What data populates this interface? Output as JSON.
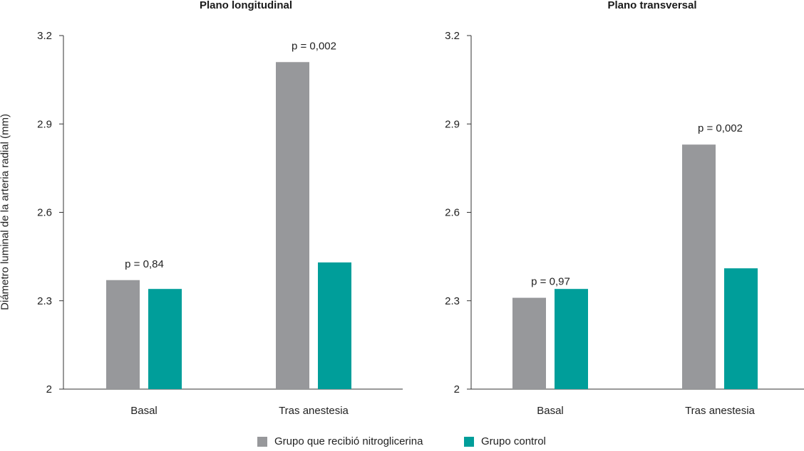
{
  "ytitle": "Diámetro luminal de la arteria radial (mm)",
  "legend": [
    {
      "label": "Grupo que recibió nitroglicerina",
      "color": "#97989b"
    },
    {
      "label": "Grupo control",
      "color": "#009e9a"
    }
  ],
  "chart_data": [
    {
      "type": "bar",
      "title": "Plano longitudinal",
      "ylabel": "Diámetro luminal de la arteria radial (mm)",
      "ylim": [
        2,
        3.2
      ],
      "yticks": [
        "2",
        "2.3",
        "2.6",
        "2.9",
        "3.2"
      ],
      "categories": [
        "Basal",
        "Tras anestesia"
      ],
      "series": [
        {
          "name": "Grupo que recibió nitroglicerina",
          "values": [
            2.37,
            3.11
          ]
        },
        {
          "name": "Grupo control",
          "values": [
            2.34,
            2.43
          ]
        }
      ],
      "annotations": [
        "p = 0,84",
        "p = 0,002"
      ]
    },
    {
      "type": "bar",
      "title": "Plano transversal",
      "ylabel": "",
      "ylim": [
        2,
        3.2
      ],
      "yticks": [
        "2",
        "2.3",
        "2.6",
        "2.9",
        "3.2"
      ],
      "categories": [
        "Basal",
        "Tras anestesia"
      ],
      "series": [
        {
          "name": "Grupo que recibió nitroglicerina",
          "values": [
            2.31,
            2.83
          ]
        },
        {
          "name": "Grupo control",
          "values": [
            2.34,
            2.41
          ]
        }
      ],
      "annotations": [
        "p = 0,97",
        "p = 0,002"
      ]
    }
  ]
}
